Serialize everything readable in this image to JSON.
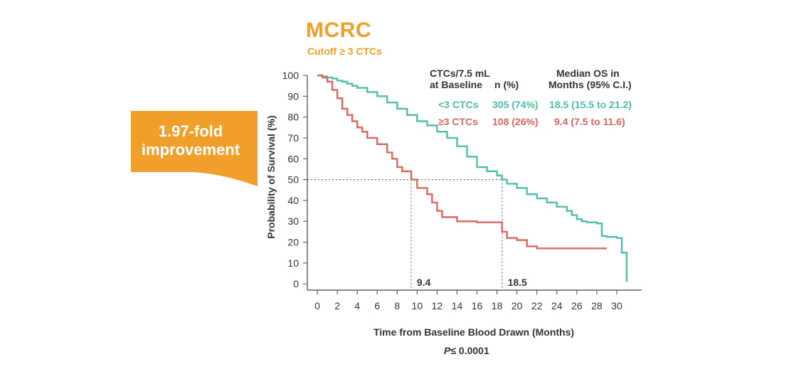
{
  "title": "MCRC",
  "subtitle": "Cutoff ≥ 3 CTCs",
  "banner": {
    "line1": "1.97-fold",
    "line2": "improvement"
  },
  "colors": {
    "accent": "#f0a02a",
    "low": "#4dbfa5",
    "high": "#d9675f",
    "text": "#333333"
  },
  "legend": {
    "header1a": "CTCs/7.5 mL",
    "header1b": "at Baseline",
    "header2": "n (%)",
    "header3a": "Median OS in",
    "header3b": "Months (95% C.I.)",
    "rows": [
      {
        "group": "<3 CTCs",
        "n": "305 (74%)",
        "os": "18.5 (15.5 to 21.2)"
      },
      {
        "group": "≥3 CTCs",
        "n": "108 (26%)",
        "os": "9.4 (7.5 to 11.6)"
      }
    ]
  },
  "p_value": {
    "label": "P",
    "text": "≤ 0.0001"
  },
  "chart_data": {
    "type": "line",
    "step": true,
    "xlabel": "Time from Baseline Blood Drawn (Months)",
    "ylabel": "Probability of Survival (%)",
    "xlim": [
      -1,
      31.5
    ],
    "ylim": [
      -3,
      100
    ],
    "xticks": [
      "0",
      "2",
      "4",
      "6",
      "8",
      "10",
      "12",
      "14",
      "16",
      "18",
      "20",
      "22",
      "24",
      "26",
      "28",
      "30"
    ],
    "yticks": [
      "0",
      "10",
      "20",
      "30",
      "40",
      "50",
      "60",
      "70",
      "80",
      "90",
      "100"
    ],
    "reference_y": 50,
    "medians": [
      {
        "x": 9.4,
        "label": "9.4"
      },
      {
        "x": 18.5,
        "label": "18.5"
      }
    ],
    "series": [
      {
        "name": "<3 CTCs",
        "color": "#4dbfa5",
        "points": [
          [
            0,
            100
          ],
          [
            0.5,
            99.5
          ],
          [
            1,
            99
          ],
          [
            1.5,
            98.5
          ],
          [
            2,
            97.5
          ],
          [
            2.5,
            97
          ],
          [
            3,
            96
          ],
          [
            3.5,
            95
          ],
          [
            4,
            94
          ],
          [
            5,
            92
          ],
          [
            6,
            90
          ],
          [
            7,
            87
          ],
          [
            8,
            84
          ],
          [
            9,
            81
          ],
          [
            10,
            78
          ],
          [
            11,
            76
          ],
          [
            12,
            73
          ],
          [
            13,
            70
          ],
          [
            14,
            66
          ],
          [
            15,
            61
          ],
          [
            16,
            56
          ],
          [
            17,
            54
          ],
          [
            18,
            52
          ],
          [
            18.5,
            50
          ],
          [
            19,
            48
          ],
          [
            20,
            46
          ],
          [
            21,
            43
          ],
          [
            22,
            41
          ],
          [
            23,
            39
          ],
          [
            24,
            37
          ],
          [
            25,
            35
          ],
          [
            25.5,
            33
          ],
          [
            26,
            31
          ],
          [
            26.5,
            30
          ],
          [
            27,
            29.5
          ],
          [
            28,
            29
          ],
          [
            28.5,
            23
          ],
          [
            29,
            22.5
          ],
          [
            30,
            22
          ],
          [
            30.5,
            15
          ],
          [
            31,
            15
          ],
          [
            31,
            1
          ]
        ]
      },
      {
        "name": "≥3 CTCs",
        "color": "#d9675f",
        "points": [
          [
            0,
            100
          ],
          [
            0.5,
            99
          ],
          [
            1,
            97
          ],
          [
            1.5,
            93
          ],
          [
            2,
            89
          ],
          [
            2.5,
            84
          ],
          [
            3,
            81
          ],
          [
            3.5,
            78
          ],
          [
            4,
            75
          ],
          [
            4.5,
            73
          ],
          [
            5,
            70
          ],
          [
            6,
            67
          ],
          [
            7,
            63
          ],
          [
            7.5,
            60
          ],
          [
            8,
            56
          ],
          [
            8.5,
            54
          ],
          [
            9.4,
            50
          ],
          [
            10,
            46
          ],
          [
            11,
            43
          ],
          [
            11.5,
            39
          ],
          [
            12,
            35
          ],
          [
            12.5,
            32
          ],
          [
            14,
            30
          ],
          [
            16,
            29.5
          ],
          [
            18,
            29.5
          ],
          [
            18.5,
            25
          ],
          [
            19,
            22
          ],
          [
            20,
            21
          ],
          [
            21,
            18
          ],
          [
            22,
            17
          ],
          [
            25,
            17
          ],
          [
            29,
            17
          ]
        ]
      }
    ]
  }
}
